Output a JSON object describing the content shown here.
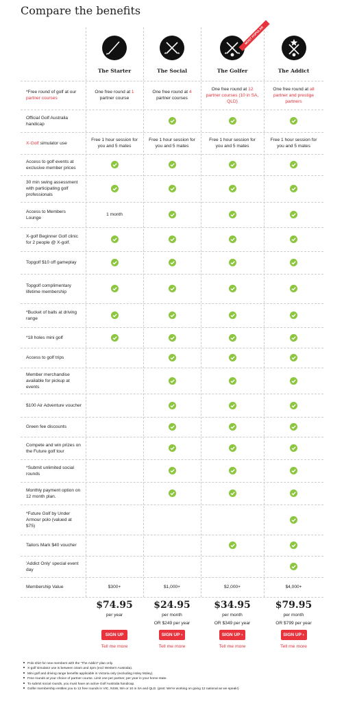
{
  "title": "Compare the benefits",
  "plans": [
    {
      "name": "The Starter",
      "price": "$74.95",
      "period": "per year",
      "button": "SIGN UP",
      "more": "Tell me more"
    },
    {
      "name": "The Social",
      "price": "$24.95",
      "period": "per month",
      "alt": "OR $249 per year",
      "button": "SIGN UP ›",
      "more": "Tell me more"
    },
    {
      "name": "The Golfer",
      "badge": "MOST POPULAR",
      "price": "$34.95",
      "period": "per month",
      "alt": "OR $349 per year",
      "button": "SIGN UP ›",
      "more": "Tell me more"
    },
    {
      "name": "The Addict",
      "price": "$79.95",
      "period": "per month",
      "alt": "OR $799 per year",
      "button": "SIGN UP ›",
      "more": "Tell me more"
    }
  ],
  "rows": [
    {
      "label": [
        {
          "text": "*Free round of golf at our"
        },
        {
          "text": "partner courses",
          "highlight": true
        }
      ],
      "cells": [
        [
          {
            "text": "One free round at"
          },
          {
            "text": "1",
            "highlight": true
          },
          {
            "text": "partner course"
          }
        ],
        [
          {
            "text": "One free round at"
          },
          {
            "text": "4",
            "highlight": true
          },
          {
            "text": "partner courses"
          }
        ],
        [
          {
            "text": "One free round at"
          },
          {
            "text": "12 partner courses (10 in SA, QLD)",
            "highlight": true
          }
        ],
        [
          {
            "text": "One free round at"
          },
          {
            "text": "all partner and prestige partners",
            "highlight": true
          }
        ]
      ]
    },
    {
      "label": "Official Golf Australia handicap",
      "cells": [
        null,
        true,
        true,
        true
      ]
    },
    {
      "label": [
        {
          "text": "X-Golf",
          "highlight": true
        },
        {
          "text": "simulator use"
        }
      ],
      "cells": [
        "Free 1 hour session for you and 5 mates",
        "Free 1 hour session for you and 5 mates",
        "Free 1 hour session for you and 5 mates",
        "Free 1 hour session for you and 5 mates"
      ]
    },
    {
      "label": "Access to golf events at exclusive member prices",
      "cells": [
        true,
        true,
        true,
        true
      ]
    },
    {
      "label": "30 min swing assessment with participating golf professionals",
      "cells": [
        true,
        true,
        true,
        true
      ]
    },
    {
      "label": "Access to Members Lounge",
      "cells": [
        "1 month",
        true,
        true,
        true
      ]
    },
    {
      "label": "X-golf Beginner Golf clinic for 2 people @ X-golf.",
      "cells": [
        true,
        true,
        true,
        true
      ]
    },
    {
      "label": "Topgolf $10 off gameplay",
      "cells": [
        true,
        true,
        true,
        true
      ]
    },
    {
      "label": "Topgolf complimentary lifetime membership",
      "cells": [
        true,
        true,
        true,
        true
      ]
    },
    {
      "label": "*Bucket of balls at driving range",
      "cells": [
        true,
        true,
        true,
        true
      ]
    },
    {
      "label": "*18 holes mini golf",
      "cells": [
        true,
        true,
        true,
        true
      ]
    },
    {
      "label": "Access to golf trips",
      "cells": [
        null,
        true,
        true,
        true
      ]
    },
    {
      "label": "Member merchandise available for pickup at events",
      "cells": [
        null,
        true,
        true,
        true
      ]
    },
    {
      "label": "$100 Air Adventure voucher",
      "cells": [
        null,
        true,
        true,
        true
      ]
    },
    {
      "label": "Green fee discounts",
      "cells": [
        null,
        true,
        true,
        true
      ]
    },
    {
      "label": "Compete and win prizes on the Future golf tour",
      "cells": [
        null,
        true,
        true,
        true
      ]
    },
    {
      "label": "*Submit unlimited social rounds",
      "cells": [
        null,
        true,
        true,
        true
      ]
    },
    {
      "label": "Monthly payment option on 12 month plan.",
      "cells": [
        null,
        true,
        true,
        true
      ]
    },
    {
      "label": "*Future Golf by Under Armour polo (valued at $75)",
      "cells": [
        null,
        null,
        null,
        true
      ]
    },
    {
      "label": "Tailors Mark $40 voucher",
      "cells": [
        null,
        null,
        true,
        true
      ]
    },
    {
      "label": "'Addict Only' special event day",
      "cells": [
        null,
        null,
        null,
        true
      ]
    },
    {
      "label": "Membership Value",
      "cells": [
        "$300+",
        "$1,000+",
        "$2,000+",
        "$4,000+"
      ]
    }
  ],
  "footnotes": [
    "Polo shirt for new members with the \"The Addict\" plan only.",
    "X-golf simulator use is between 10am and 4pm (excl Western Australia).",
    "Mini golf and driving range benefits applicable in Victoria only (excluding Holey Moley).",
    "Free rounds at your choice of partner course. Limit one per partner, per year in your home state.",
    "To submit social rounds, you must have an active Golf Australia handicap.",
    "Golfer membership entitles you to 12 free rounds in VIC, NSW, WA or 10 in SA and QLD. (psst: We're working on going 12 national as we speak!)"
  ]
}
